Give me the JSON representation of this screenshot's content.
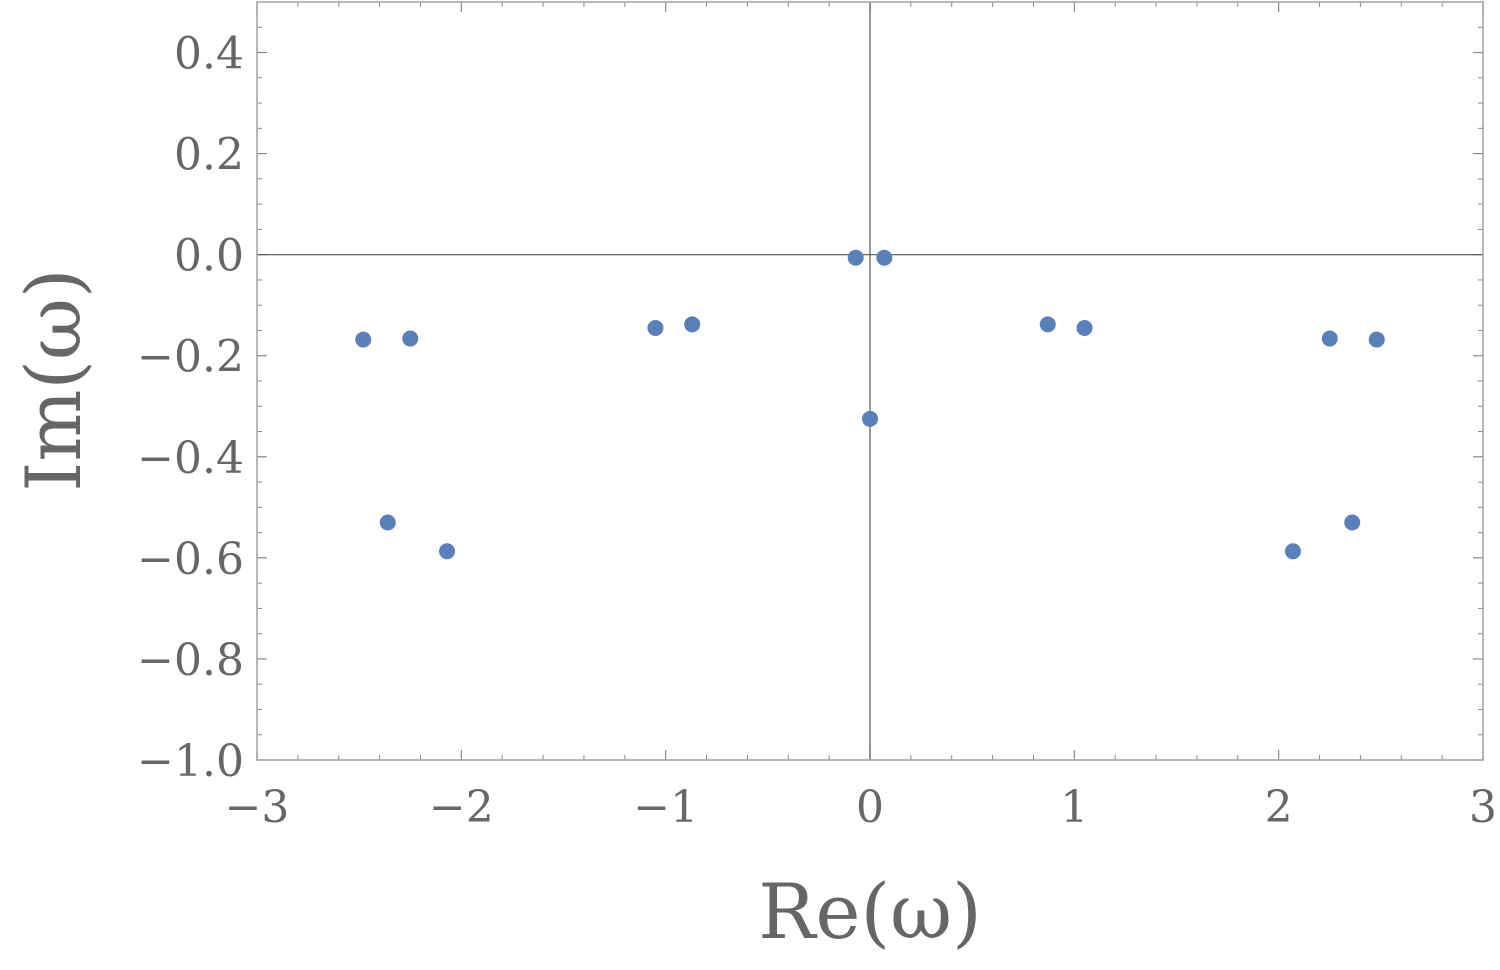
{
  "chart_data": {
    "type": "scatter",
    "title": "",
    "xlabel": "Re(ω)",
    "ylabel": "Im(ω)",
    "xlim": [
      -3,
      3
    ],
    "ylim": [
      -1.0,
      0.5
    ],
    "x_ticks": [
      {
        "value": -3,
        "label": "−3"
      },
      {
        "value": -2,
        "label": "−2"
      },
      {
        "value": -1,
        "label": "−1"
      },
      {
        "value": 0,
        "label": "0"
      },
      {
        "value": 1,
        "label": "1"
      },
      {
        "value": 2,
        "label": "2"
      },
      {
        "value": 3,
        "label": "3"
      }
    ],
    "y_ticks": [
      {
        "value": 0.4,
        "label": "0.4"
      },
      {
        "value": 0.2,
        "label": "0.2"
      },
      {
        "value": 0.0,
        "label": "0.0"
      },
      {
        "value": -0.2,
        "label": "−0.2"
      },
      {
        "value": -0.4,
        "label": "−0.4"
      },
      {
        "value": -0.6,
        "label": "−0.6"
      },
      {
        "value": -0.8,
        "label": "−0.8"
      },
      {
        "value": -1.0,
        "label": "−1.0"
      }
    ],
    "grid": false,
    "axes_through_origin": true,
    "marker_color": "#5b7fb9",
    "frame_color": "#a0a0a0",
    "series": [
      {
        "points": [
          {
            "x": -2.48,
            "y": -0.168
          },
          {
            "x": -2.25,
            "y": -0.166
          },
          {
            "x": -2.36,
            "y": -0.53
          },
          {
            "x": -2.07,
            "y": -0.587
          },
          {
            "x": -1.05,
            "y": -0.145
          },
          {
            "x": -0.87,
            "y": -0.138
          },
          {
            "x": -0.07,
            "y": -0.006
          },
          {
            "x": 0.07,
            "y": -0.006
          },
          {
            "x": 0.0,
            "y": -0.325
          },
          {
            "x": 0.87,
            "y": -0.138
          },
          {
            "x": 1.05,
            "y": -0.145
          },
          {
            "x": 2.25,
            "y": -0.166
          },
          {
            "x": 2.48,
            "y": -0.168
          },
          {
            "x": 2.36,
            "y": -0.53
          },
          {
            "x": 2.07,
            "y": -0.587
          }
        ]
      }
    ]
  }
}
